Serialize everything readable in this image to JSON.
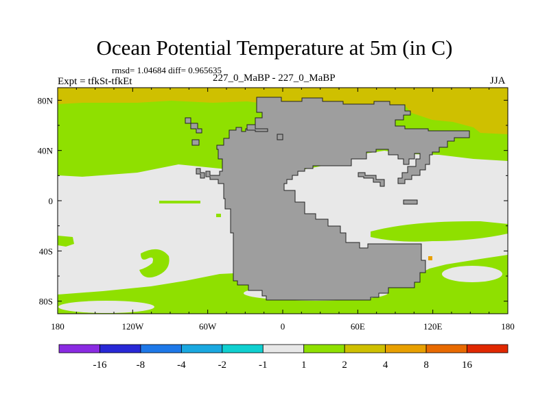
{
  "title": "Ocean Potential Temperature at 5m (in C)",
  "stats_text": "rmsd= 1.04684  diff= 0.965635",
  "experiment_label": "Expt = tfkSt-tfkEt",
  "center_label": "227_0_MaBP - 227_0_MaBP",
  "season": "JJA",
  "colors": {
    "land": "#9e9e9e",
    "band_neutral": "#e8e8e8",
    "band_1_2": "#8fe000",
    "band_2_4": "#cfc000"
  },
  "chart_data": {
    "type": "heatmap",
    "variable": "Ocean Potential Temperature at 5m (in C)",
    "xlim": [
      -180,
      180
    ],
    "ylim": [
      -90,
      90
    ],
    "x_ticks": [
      {
        "value": -180,
        "label": "180"
      },
      {
        "value": -120,
        "label": "120W"
      },
      {
        "value": -60,
        "label": "60W"
      },
      {
        "value": 0,
        "label": "0"
      },
      {
        "value": 60,
        "label": "60E"
      },
      {
        "value": 120,
        "label": "120E"
      },
      {
        "value": 180,
        "label": "180"
      }
    ],
    "y_ticks": [
      {
        "value": 80,
        "label": "80N"
      },
      {
        "value": 40,
        "label": "40N"
      },
      {
        "value": 0,
        "label": "0"
      },
      {
        "value": -40,
        "label": "40S"
      },
      {
        "value": -80,
        "label": "80S"
      }
    ],
    "contour_levels": [
      -16,
      -8,
      -4,
      -2,
      -1,
      1,
      2,
      4,
      8,
      16
    ],
    "colorbar_labels": [
      "-16",
      "-8",
      "-4",
      "-2",
      "-1",
      "1",
      "2",
      "4",
      "8",
      "16"
    ],
    "colorbar_colors": [
      "#8a2be2",
      "#2828d6",
      "#1e78e8",
      "#1aa8e0",
      "#10d0d0",
      "#e8e8e8",
      "#8fe000",
      "#cfc000",
      "#e8a000",
      "#e86a00",
      "#e02800"
    ],
    "regions": [
      {
        "name": "ocean",
        "value_range": [
          -1,
          1
        ],
        "color_index": 5
      },
      {
        "name": "northern-subtropical-band",
        "value_range": [
          1,
          2
        ],
        "color_index": 6
      },
      {
        "name": "high-latitude-north",
        "value_range": [
          2,
          4
        ],
        "color_index": 7
      },
      {
        "name": "southern-midlatitude-band",
        "value_range": [
          1,
          2
        ],
        "color_index": 6
      },
      {
        "name": "land",
        "color": "#9e9e9e"
      }
    ]
  }
}
